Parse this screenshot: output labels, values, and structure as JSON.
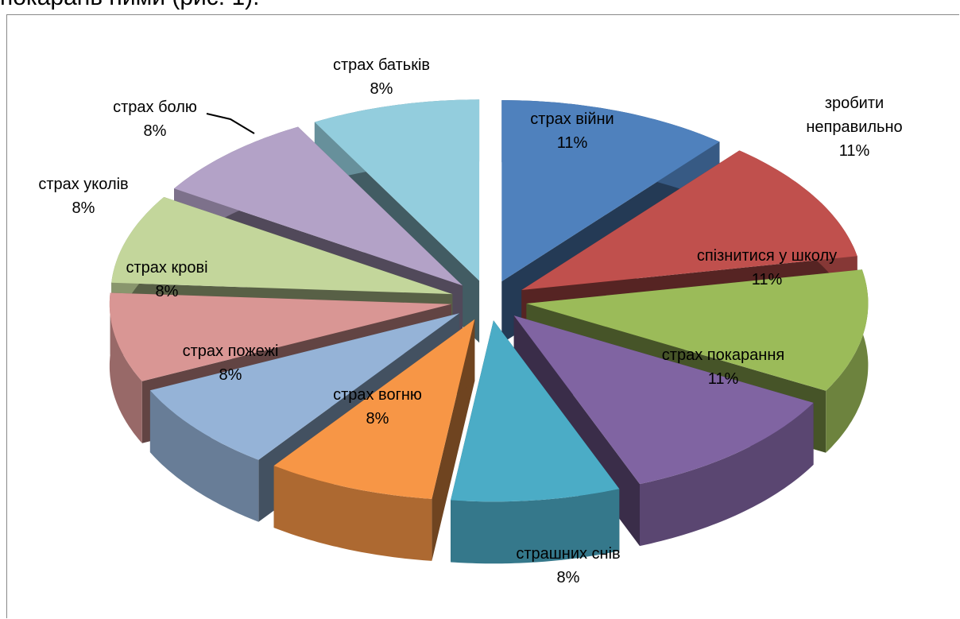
{
  "text_above": "покарань ними (рис. 1).",
  "chart_data": {
    "type": "pie3d",
    "categories": [
      "страх війни",
      "зробити неправильно",
      "спізнитися у школу",
      "страх покарання",
      "страшних снів",
      "страх вогню",
      "страх пожежі",
      "страх крові",
      "страх уколів",
      "страх болю",
      "страх батьків"
    ],
    "values": [
      11,
      11,
      11,
      11,
      8,
      8,
      8,
      8,
      8,
      8,
      8
    ],
    "value_labels": [
      "11%",
      "11%",
      "11%",
      "11%",
      "8%",
      "8%",
      "8%",
      "8%",
      "8%",
      "8%",
      "8%"
    ],
    "colors": [
      "#4f81bd",
      "#c0504d",
      "#9bbb59",
      "#8064a2",
      "#4bacc6",
      "#f79646",
      "#95b3d7",
      "#d99694",
      "#c3d69b",
      "#b3a2c7",
      "#93cddd"
    ]
  }
}
